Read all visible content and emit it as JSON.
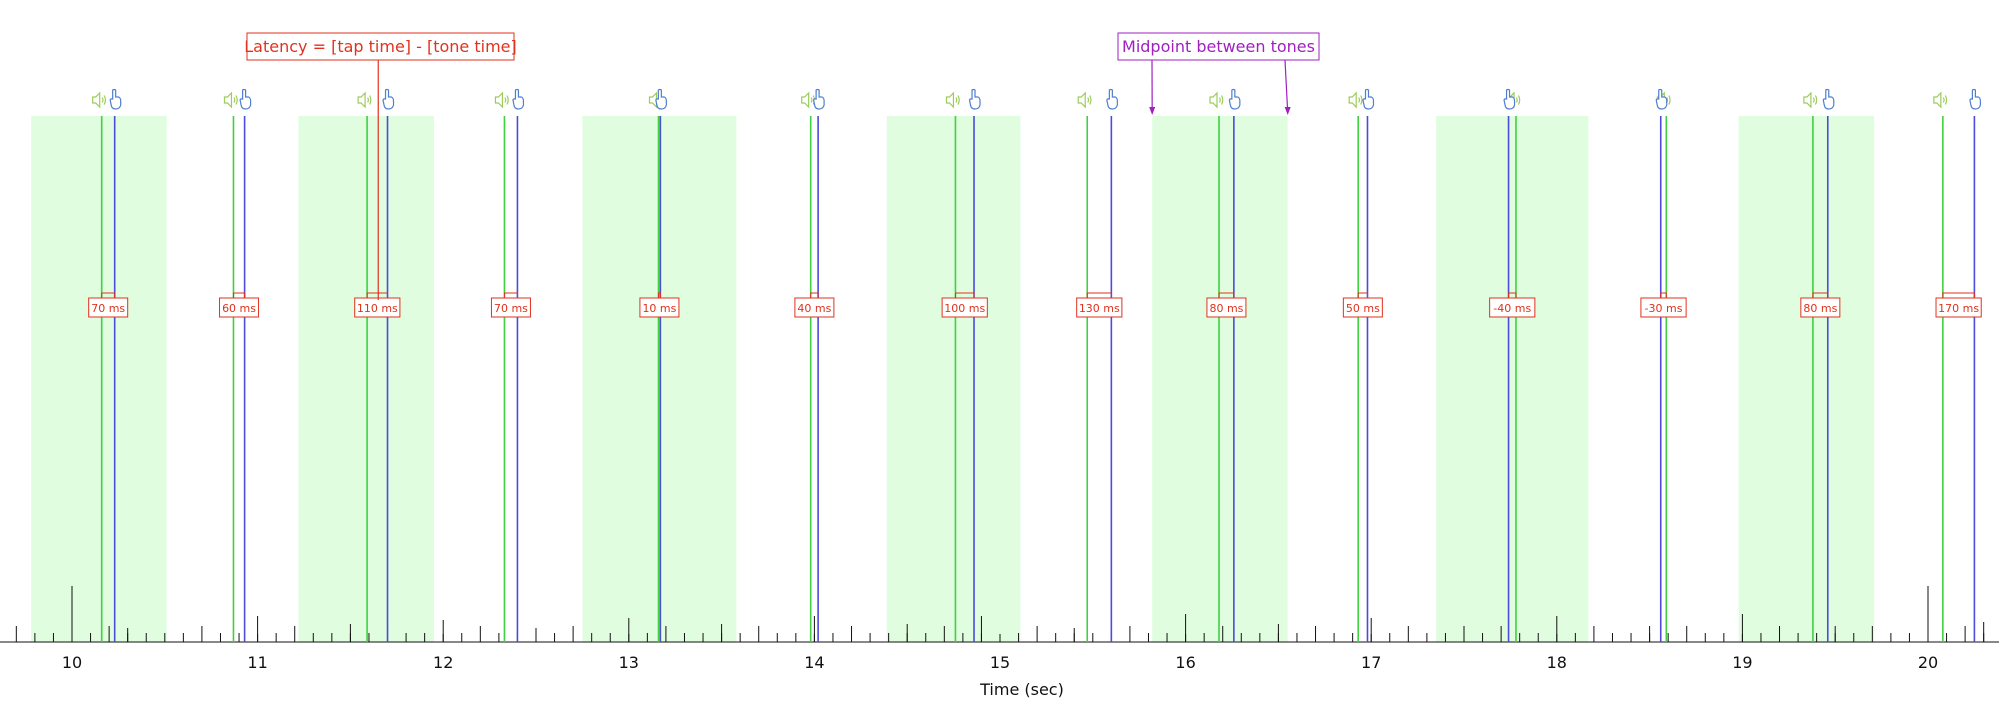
{
  "chart_data": {
    "type": "timeline",
    "title": "",
    "xlabel": "Time (sec)",
    "xlim": [
      9.7,
      20.4
    ],
    "x_ticks": [
      10,
      11,
      12,
      13,
      14,
      15,
      16,
      17,
      18,
      19,
      20
    ],
    "latency_unit": "ms",
    "series": [
      {
        "name": "tone",
        "color": "#3fd13f"
      },
      {
        "name": "tap",
        "color": "#4b4bdc"
      }
    ],
    "shaded_windows": [
      [
        9.78,
        10.51
      ],
      [
        11.22,
        11.95
      ],
      [
        12.75,
        13.58
      ],
      [
        14.39,
        15.11
      ],
      [
        15.82,
        16.55
      ],
      [
        17.35,
        18.17
      ],
      [
        18.98,
        19.71
      ]
    ],
    "events": [
      {
        "tone": 10.16,
        "tap": 10.23,
        "latency_ms": 70
      },
      {
        "tone": 10.87,
        "tap": 10.93,
        "latency_ms": 60
      },
      {
        "tone": 11.59,
        "tap": 11.7,
        "latency_ms": 110
      },
      {
        "tone": 12.33,
        "tap": 12.4,
        "latency_ms": 70
      },
      {
        "tone": 13.16,
        "tap": 13.17,
        "latency_ms": 10
      },
      {
        "tone": 13.98,
        "tap": 14.02,
        "latency_ms": 40
      },
      {
        "tone": 14.76,
        "tap": 14.86,
        "latency_ms": 100
      },
      {
        "tone": 15.47,
        "tap": 15.6,
        "latency_ms": 130
      },
      {
        "tone": 16.18,
        "tap": 16.26,
        "latency_ms": 80
      },
      {
        "tone": 16.93,
        "tap": 16.98,
        "latency_ms": 50
      },
      {
        "tone": 17.78,
        "tap": 17.74,
        "latency_ms": -40
      },
      {
        "tone": 18.59,
        "tap": 18.56,
        "latency_ms": -30
      },
      {
        "tone": 19.38,
        "tap": 19.46,
        "latency_ms": 80
      },
      {
        "tone": 20.08,
        "tap": 20.25,
        "latency_ms": 170
      }
    ],
    "annotations": [
      {
        "text": "Latency = [tap time] - [tone time]",
        "color": "#e0321e",
        "points_to": [
          11.65
        ]
      },
      {
        "text": "Midpoint between tones",
        "color": "#a020c0",
        "points_to": [
          15.82,
          16.55
        ]
      }
    ],
    "grid": false,
    "legend": "none"
  }
}
